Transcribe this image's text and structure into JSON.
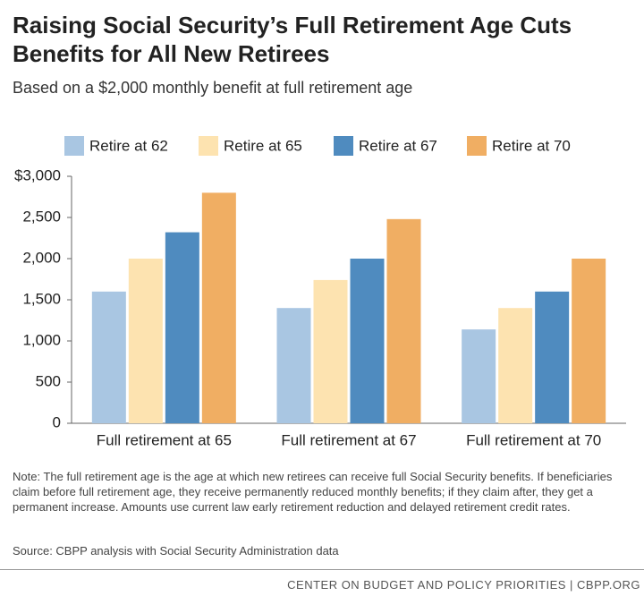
{
  "chart_data": {
    "type": "bar",
    "title": "Raising Social Security’s Full Retirement Age Cuts Benefits for All New Retirees",
    "subtitle": "Based on a $2,000 monthly benefit at full retirement age",
    "categories": [
      "Full retirement at 65",
      "Full retirement at 67",
      "Full retirement at 70"
    ],
    "series": [
      {
        "name": "Retire at 62",
        "color": "#a9c6e2",
        "values": [
          1600,
          1400,
          1140
        ]
      },
      {
        "name": "Retire at 65",
        "color": "#fde3b0",
        "values": [
          2000,
          1740,
          1400
        ]
      },
      {
        "name": "Retire at 67",
        "color": "#4f8bbf",
        "values": [
          2320,
          2000,
          1600
        ]
      },
      {
        "name": "Retire at 70",
        "color": "#f0ae63",
        "values": [
          2800,
          2480,
          2000
        ]
      }
    ],
    "ylim": [
      0,
      3000
    ],
    "yticks": [
      0,
      500,
      {
        "value": 1000,
        "label": "1,000"
      },
      {
        "value": 1500,
        "label": "1,500"
      },
      {
        "value": 2000,
        "label": "2,000"
      },
      {
        "value": 2500,
        "label": "2,500"
      },
      {
        "value": 3000,
        "label": "$3,000"
      }
    ],
    "grid": false,
    "legend": "top",
    "note": "Note: The full retirement age is the age at which new retirees can receive full Social Security benefits. If beneficiaries claim before full retirement age, they receive permanently reduced monthly benefits; if they claim after, they get a permanent increase. Amounts use current law early retirement reduction and delayed retirement credit rates.",
    "source": "Source: CBPP analysis with Social Security Administration data",
    "footer": "CENTER ON BUDGET AND POLICY PRIORITIES | CBPP.ORG"
  }
}
